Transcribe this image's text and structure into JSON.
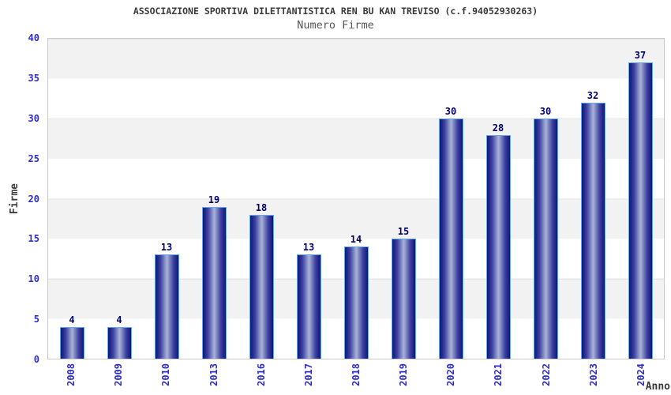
{
  "header": {
    "title": "ASSOCIAZIONE SPORTIVA DILETTANTISTICA REN BU KAN TREVISO (c.f.94052930263)",
    "subtitle": "Numero Firme"
  },
  "chart_data": {
    "type": "bar",
    "title": "ASSOCIAZIONE SPORTIVA DILETTANTISTICA REN BU KAN TREVISO (c.f.94052930263)",
    "subtitle": "Numero Firme",
    "xlabel": "Anno",
    "ylabel": "Firme",
    "categories": [
      "2008",
      "2009",
      "2010",
      "2013",
      "2016",
      "2017",
      "2018",
      "2019",
      "2020",
      "2021",
      "2022",
      "2023",
      "2024"
    ],
    "values": [
      4,
      4,
      13,
      19,
      18,
      13,
      14,
      15,
      30,
      28,
      30,
      32,
      37
    ],
    "ylim": [
      0,
      40
    ],
    "yticks": [
      0,
      5,
      10,
      15,
      20,
      25,
      30,
      35,
      40
    ],
    "grid": "horizontal-alternating-bands",
    "legend": "none",
    "colors": {
      "bar_edge": "#13137a",
      "bar_mid": "#3c42a0",
      "bar_center": "#aab3d9",
      "bar_border": "#64a8e6",
      "value_label": "#00006a",
      "tick_label": "#2d2dcd",
      "band_gray": "#f2f2f2",
      "band_white": "#ffffff",
      "band_line": "#e6e6e6",
      "plot_border": "#c9c9c9"
    }
  }
}
